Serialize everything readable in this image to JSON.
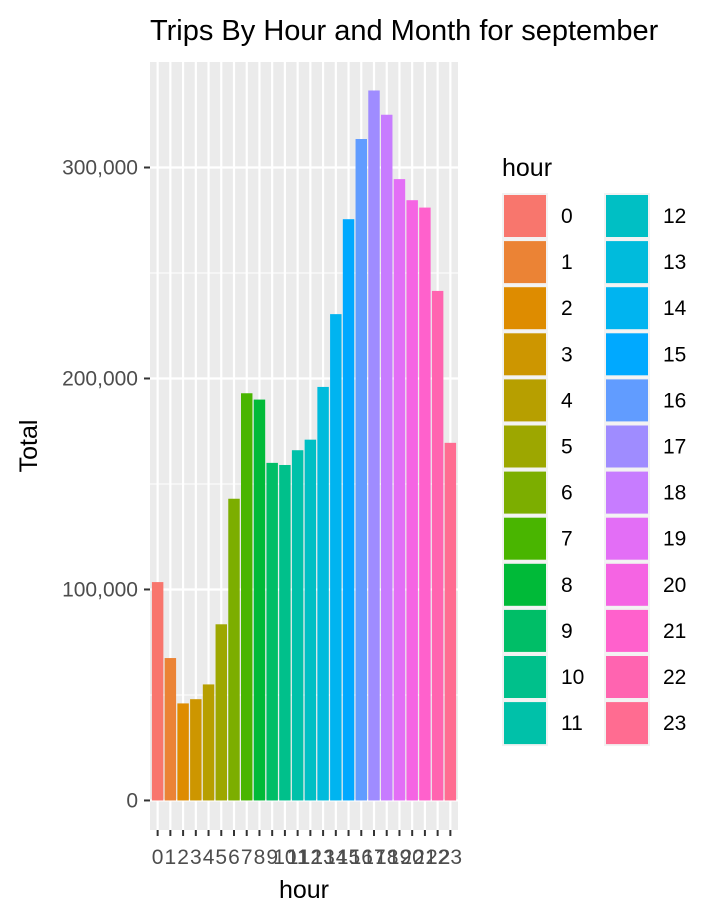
{
  "chart_data": {
    "type": "bar",
    "title": "Trips By Hour and Month for september",
    "xlabel": "hour",
    "ylabel": "Total",
    "categories": [
      "0",
      "1",
      "2",
      "3",
      "4",
      "5",
      "6",
      "7",
      "8",
      "9",
      "10",
      "11",
      "12",
      "13",
      "14",
      "15",
      "16",
      "17",
      "18",
      "19",
      "20",
      "21",
      "22",
      "23"
    ],
    "values": [
      103500,
      67500,
      46000,
      48000,
      55000,
      83500,
      143000,
      193000,
      190000,
      160000,
      159000,
      166000,
      171000,
      196000,
      230500,
      275500,
      313500,
      336500,
      325000,
      294500,
      284500,
      281000,
      241500,
      169500
    ],
    "colors": [
      "#F8766D",
      "#EB8335",
      "#DE8C00",
      "#CD9600",
      "#B79F00",
      "#9DA700",
      "#7CAE00",
      "#49B500",
      "#00BA38",
      "#00BE67",
      "#00C08B",
      "#00C1A9",
      "#00BFC4",
      "#00BBDC",
      "#00B4F0",
      "#00A9FF",
      "#619CFF",
      "#9F8CFF",
      "#C77CFF",
      "#E36EF6",
      "#F564E3",
      "#FF61CC",
      "#FF64B0",
      "#FF6C91"
    ],
    "ylim": [
      -14000,
      350000
    ],
    "y_ticks": [
      0,
      100000,
      200000,
      300000
    ],
    "y_tick_labels": [
      "0",
      "100,000",
      "200,000",
      "300,000"
    ],
    "grid": true,
    "legend": {
      "title": "hour",
      "position": "right",
      "columns": 2
    }
  }
}
